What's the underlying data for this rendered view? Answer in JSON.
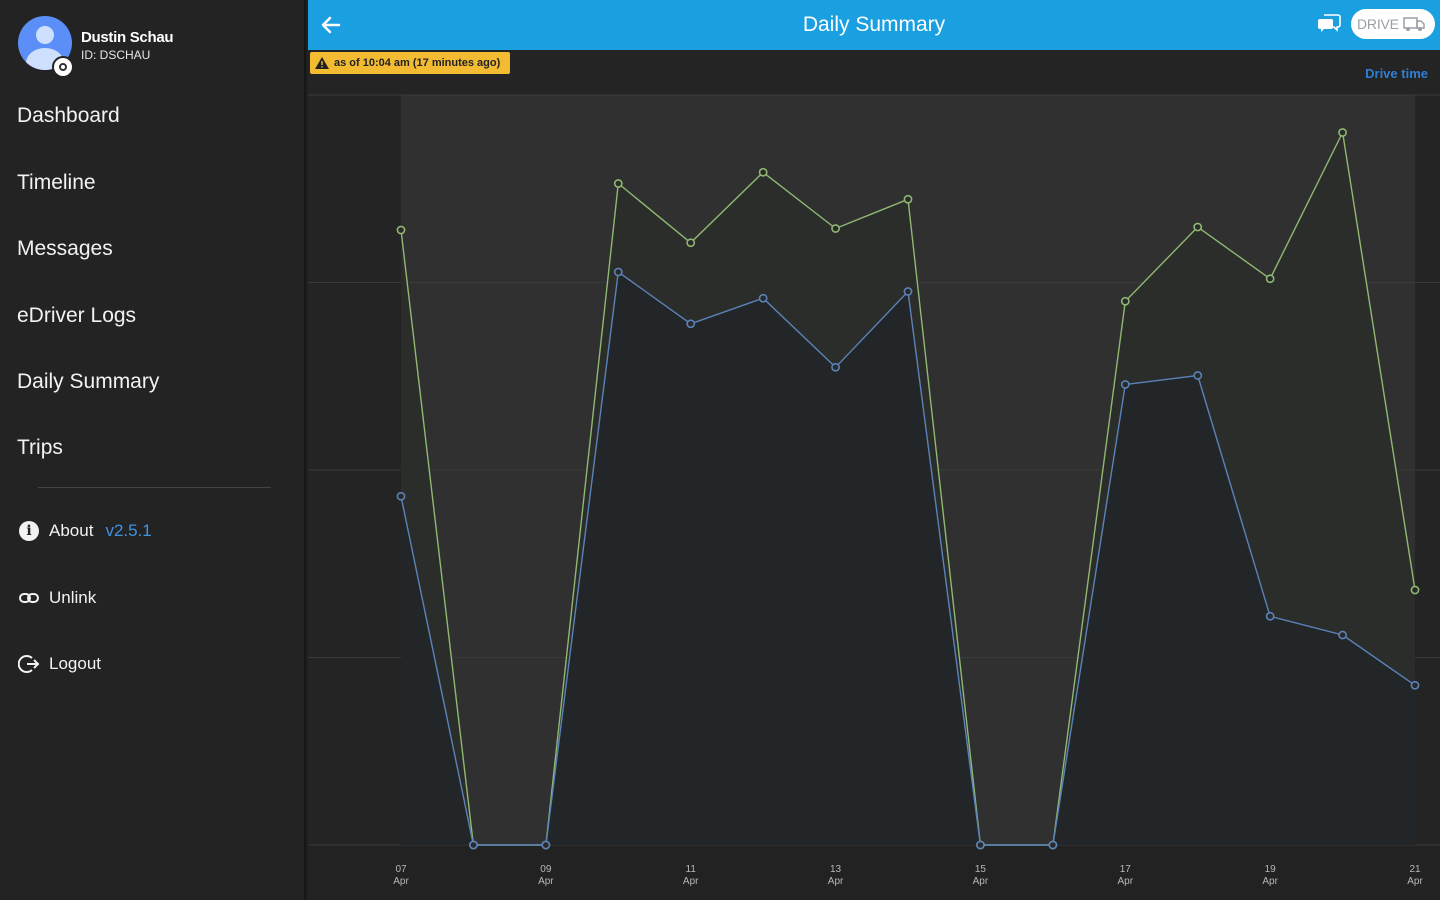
{
  "profile": {
    "name": "Dustin Schau",
    "id": "ID: DSCHAU"
  },
  "nav": {
    "items": [
      {
        "label": "Dashboard"
      },
      {
        "label": "Timeline"
      },
      {
        "label": "Messages"
      },
      {
        "label": "eDriver Logs"
      },
      {
        "label": "Daily Summary"
      },
      {
        "label": "Trips"
      }
    ],
    "about": {
      "label": "About",
      "version": "v2.5.1"
    },
    "unlink": {
      "label": "Unlink"
    },
    "logout": {
      "label": "Logout"
    }
  },
  "topbar": {
    "title": "Daily Summary",
    "drive_label": "DRIVE",
    "color": "#1a9fe0"
  },
  "banner": {
    "text": "as of 10:04 am (17 minutes ago)",
    "color": "#f2bb32"
  },
  "legend": {
    "label": "Drive time"
  },
  "icons": [
    "arrow-left-icon",
    "chat-icon",
    "vehicle-icon",
    "warning-icon",
    "info-icon",
    "link-icon",
    "logout-icon"
  ],
  "chart_data": {
    "type": "area",
    "x": [
      "07 Apr",
      "08 Apr",
      "09 Apr",
      "10 Apr",
      "11 Apr",
      "12 Apr",
      "13 Apr",
      "14 Apr",
      "15 Apr",
      "16 Apr",
      "17 Apr",
      "18 Apr",
      "19 Apr",
      "20 Apr",
      "21 Apr"
    ],
    "tick_labels": [
      {
        "day": "07",
        "month": "Apr"
      },
      {
        "day": "09",
        "month": "Apr"
      },
      {
        "day": "11",
        "month": "Apr"
      },
      {
        "day": "13",
        "month": "Apr"
      },
      {
        "day": "15",
        "month": "Apr"
      },
      {
        "day": "17",
        "month": "Apr"
      },
      {
        "day": "19",
        "month": "Apr"
      },
      {
        "day": "21",
        "month": "Apr"
      }
    ],
    "series": [
      {
        "color": "#8fb873",
        "values": [
          82,
          0,
          0,
          88.2,
          80.3,
          89.7,
          82.2,
          86.1,
          0,
          0,
          72.5,
          82.4,
          75.5,
          95.0,
          34.0
        ]
      },
      {
        "name": "Drive time",
        "color": "#5b82b8",
        "values": [
          46.5,
          0,
          0,
          76.4,
          69.5,
          72.9,
          63.7,
          73.8,
          0,
          0,
          61.4,
          62.6,
          30.5,
          28.0,
          21.3
        ]
      }
    ],
    "ylim": [
      0,
      100
    ],
    "grid": true,
    "legend_position": "top-right"
  }
}
